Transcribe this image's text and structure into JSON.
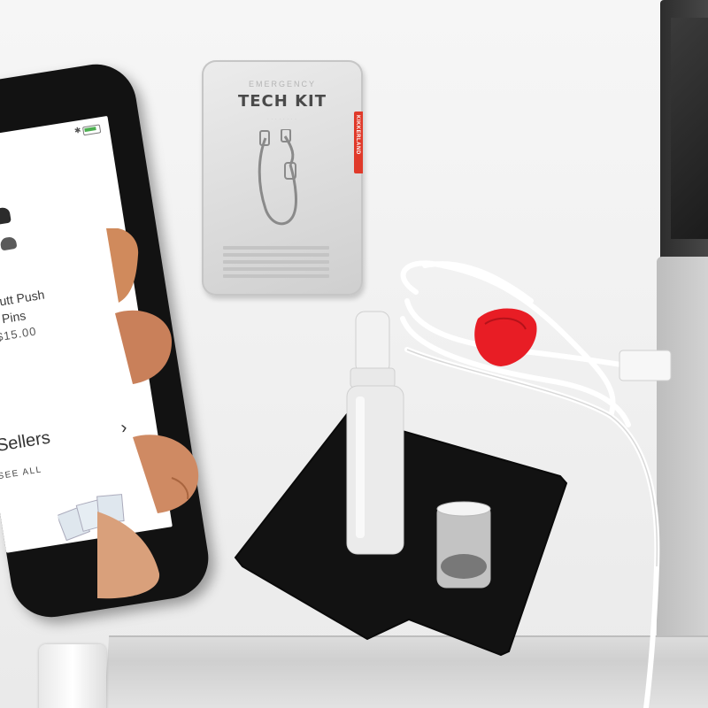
{
  "tin": {
    "subtitle": "EMERGENCY",
    "title": "TECH KIT",
    "brand": "KIKKERLAND"
  },
  "phone_screen": {
    "product_name": "at Butt Push\nPins",
    "product_price": "$15.00",
    "section_title": "Sellers",
    "see_all": "SEE ALL",
    "chevron": "›"
  },
  "colors": {
    "tin_brand_strip": "#e03a2a",
    "cable_tie": "#e81d25",
    "cloth": "#121212",
    "battery": "#4caf50"
  },
  "icons": [
    "bluetooth-icon",
    "battery-icon",
    "chevron-right-icon"
  ]
}
